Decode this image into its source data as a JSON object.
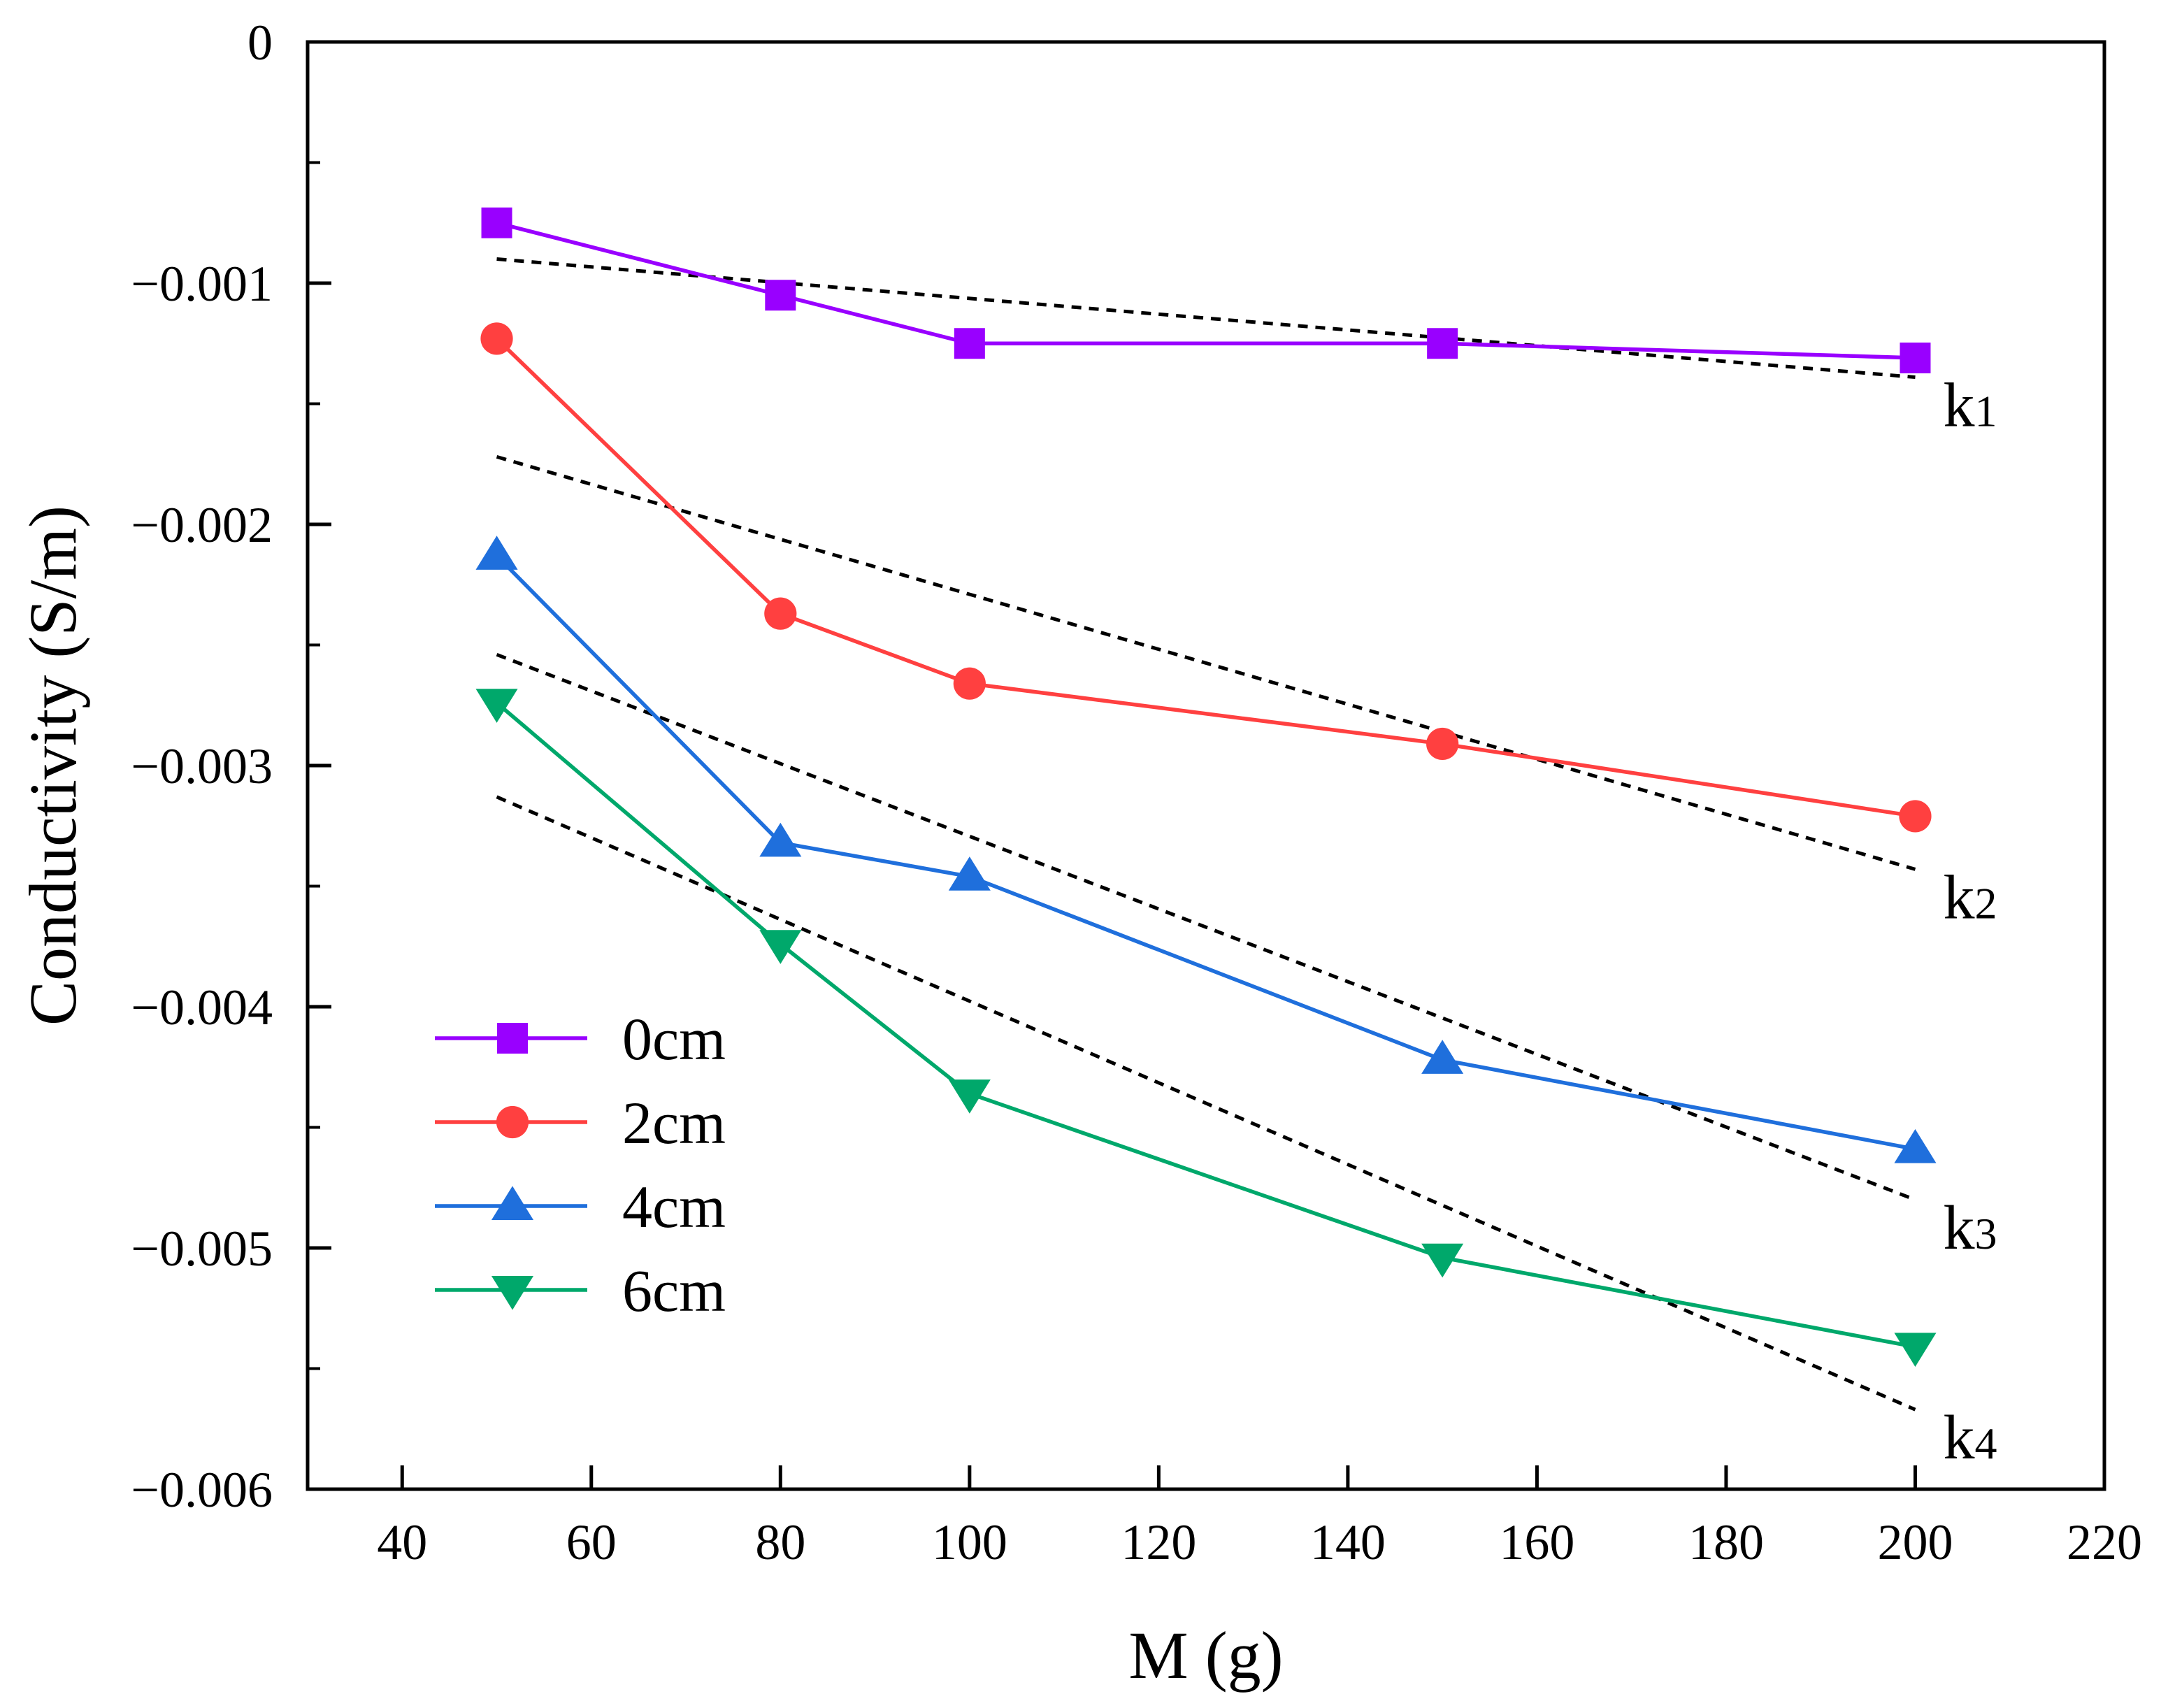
{
  "chart_data": {
    "type": "line",
    "title": "",
    "xlabel": "M (g)",
    "ylabel": "Conductivity (S/m)",
    "xlim": [
      30,
      220
    ],
    "ylim": [
      -0.006,
      0
    ],
    "x_ticks": [
      40,
      60,
      80,
      100,
      120,
      140,
      160,
      180,
      200,
      220
    ],
    "x_tick_labels": [
      "40",
      "60",
      "80",
      "100",
      "120",
      "140",
      "160",
      "180",
      "200",
      "220"
    ],
    "y_ticks": [
      0,
      -0.001,
      -0.002,
      -0.003,
      -0.004,
      -0.005,
      -0.006
    ],
    "y_tick_labels": [
      "0",
      "−0.001",
      "−0.002",
      "−0.003",
      "−0.004",
      "−0.005",
      "−0.006"
    ],
    "grid": false,
    "legend_position": "bottom-left",
    "x": [
      50,
      80,
      100,
      150,
      200
    ],
    "series": [
      {
        "name": "0cm",
        "color": "#9900ff",
        "marker": "square",
        "values": [
          -0.00075,
          -0.00105,
          -0.00125,
          -0.00125,
          -0.00131
        ]
      },
      {
        "name": "2cm",
        "color": "#ff4040",
        "marker": "circle",
        "values": [
          -0.00123,
          -0.00237,
          -0.00266,
          -0.00291,
          -0.00321
        ]
      },
      {
        "name": "4cm",
        "color": "#1f6fdc",
        "marker": "triangle-up",
        "values": [
          -0.00213,
          -0.00332,
          -0.00346,
          -0.00422,
          -0.00459
        ]
      },
      {
        "name": "6cm",
        "color": "#00a86b",
        "marker": "triangle-down",
        "values": [
          -0.00274,
          -0.00374,
          -0.00436,
          -0.00504,
          -0.00541
        ]
      }
    ],
    "fit_lines": [
      {
        "label": "k",
        "subscript": "1",
        "x": [
          50,
          200
        ],
        "y": [
          -0.0009,
          -0.00139
        ]
      },
      {
        "label": "k",
        "subscript": "2",
        "x": [
          50,
          200
        ],
        "y": [
          -0.00172,
          -0.00343
        ]
      },
      {
        "label": "k",
        "subscript": "3",
        "x": [
          50,
          200
        ],
        "y": [
          -0.00254,
          -0.0048
        ]
      },
      {
        "label": "k",
        "subscript": "4",
        "x": [
          50,
          200
        ],
        "y": [
          -0.00313,
          -0.00567
        ]
      }
    ]
  }
}
